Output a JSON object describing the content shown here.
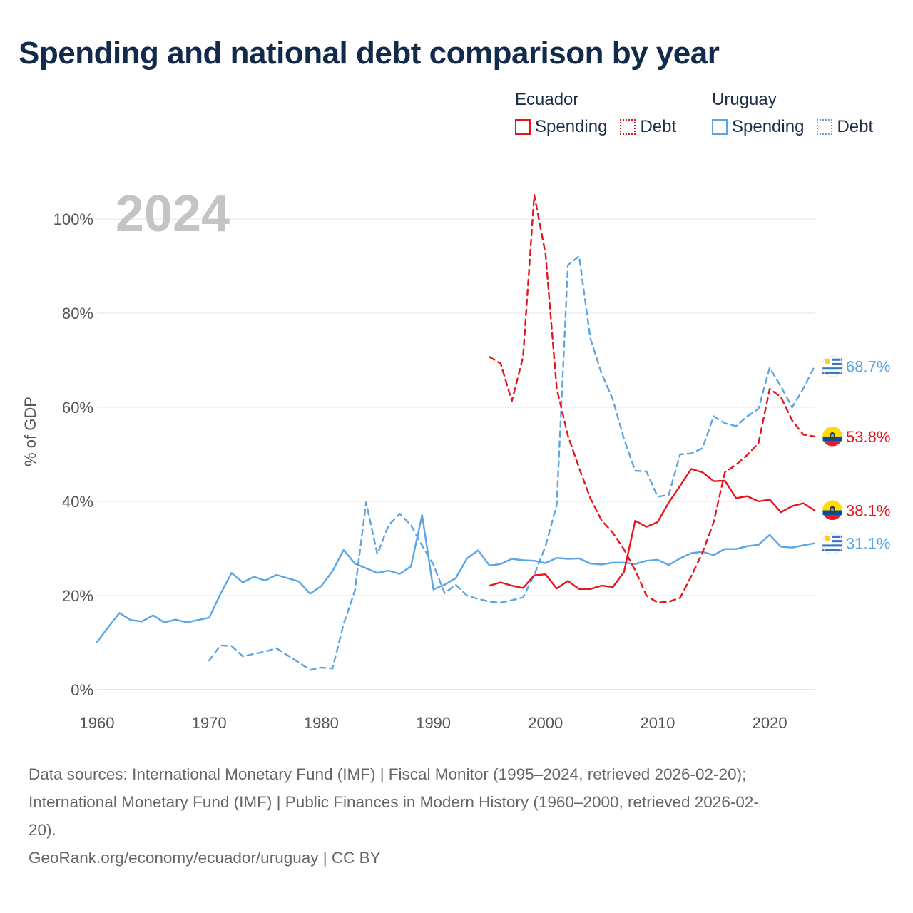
{
  "header": {
    "title": "Spending and national debt comparison by year"
  },
  "legend": {
    "groups": [
      {
        "country": "Ecuador",
        "color": "#e8141c",
        "items": [
          {
            "label": "Spending",
            "style": "solid"
          },
          {
            "label": "Debt",
            "style": "dashed"
          }
        ]
      },
      {
        "country": "Uruguay",
        "color": "#5aa5e6",
        "items": [
          {
            "label": "Spending",
            "style": "solid"
          },
          {
            "label": "Debt",
            "style": "dashed"
          }
        ]
      }
    ]
  },
  "chart_data": {
    "type": "line",
    "title": "Spending and national debt comparison by year",
    "year_label": "2024",
    "xlabel": "",
    "ylabel": "% of GDP",
    "xlim": [
      1960,
      2024
    ],
    "ylim": [
      0,
      100
    ],
    "x_ticks": [
      1960,
      1970,
      1980,
      1990,
      2000,
      2010,
      2020
    ],
    "y_ticks": [
      0,
      20,
      40,
      60,
      80,
      100
    ],
    "y_tick_labels": [
      "0%",
      "20%",
      "40%",
      "60%",
      "80%",
      "100%"
    ],
    "grid": true,
    "series": [
      {
        "name": "Uruguay Spending",
        "country": "Uruguay",
        "metric": "Spending",
        "color": "#5aa5e6",
        "style": "solid",
        "x": [
          1960,
          1961,
          1962,
          1963,
          1964,
          1965,
          1966,
          1967,
          1968,
          1969,
          1970,
          1971,
          1972,
          1973,
          1974,
          1975,
          1976,
          1977,
          1978,
          1979,
          1980,
          1981,
          1982,
          1983,
          1984,
          1985,
          1986,
          1987,
          1988,
          1989,
          1990,
          1991,
          1992,
          1993,
          1994,
          1995,
          1996,
          1997,
          1998,
          1999,
          2000,
          2001,
          2002,
          2003,
          2004,
          2005,
          2006,
          2007,
          2008,
          2009,
          2010,
          2011,
          2012,
          2013,
          2014,
          2015,
          2016,
          2017,
          2018,
          2019,
          2020,
          2021,
          2022,
          2023,
          2024
        ],
        "values": [
          10.1,
          13.3,
          16.3,
          14.8,
          14.5,
          15.8,
          14.3,
          14.9,
          14.3,
          14.8,
          15.3,
          20.3,
          24.8,
          22.8,
          24.0,
          23.2,
          24.4,
          23.7,
          23.0,
          20.4,
          22.0,
          25.2,
          29.7,
          26.8,
          25.8,
          24.8,
          25.3,
          24.6,
          26.2,
          37.1,
          21.3,
          22.3,
          23.7,
          27.9,
          29.6,
          26.4,
          26.7,
          27.8,
          27.5,
          27.4,
          26.9,
          28.0,
          27.8,
          27.9,
          26.8,
          26.6,
          27.0,
          27.0,
          26.7,
          27.4,
          27.6,
          26.5,
          27.9,
          29.0,
          29.3,
          28.6,
          29.9,
          29.9,
          30.5,
          30.8,
          32.9,
          30.4,
          30.2,
          30.7,
          31.1
        ],
        "end_label": "31.1%"
      },
      {
        "name": "Uruguay Debt",
        "country": "Uruguay",
        "metric": "Debt",
        "color": "#5aa5e6",
        "style": "dashed",
        "x": [
          1970,
          1971,
          1972,
          1973,
          1974,
          1975,
          1976,
          1977,
          1978,
          1979,
          1980,
          1981,
          1982,
          1983,
          1984,
          1985,
          1986,
          1987,
          1988,
          1989,
          1990,
          1991,
          1992,
          1993,
          1994,
          1995,
          1996,
          1997,
          1998,
          1999,
          2000,
          2001,
          2002,
          2003,
          2004,
          2005,
          2006,
          2007,
          2008,
          2009,
          2010,
          2011,
          2012,
          2013,
          2014,
          2015,
          2016,
          2017,
          2018,
          2019,
          2020,
          2021,
          2022,
          2023,
          2024
        ],
        "values": [
          6.2,
          9.4,
          9.3,
          7.1,
          7.6,
          8.1,
          8.8,
          7.3,
          5.8,
          4.2,
          4.7,
          4.5,
          14.0,
          21.0,
          39.8,
          28.8,
          34.9,
          37.4,
          35.0,
          30.6,
          26.6,
          20.5,
          22.3,
          20.0,
          19.3,
          18.7,
          18.5,
          19.0,
          19.6,
          24.4,
          30.5,
          39.3,
          90.2,
          92.1,
          74.7,
          67.2,
          61.7,
          53.3,
          46.5,
          46.4,
          41.0,
          41.4,
          50.0,
          50.2,
          51.3,
          58.1,
          56.6,
          56.0,
          58.1,
          59.7,
          68.4,
          64.4,
          60.0,
          64.0,
          68.7
        ],
        "end_label": "68.7%"
      },
      {
        "name": "Ecuador Spending",
        "country": "Ecuador",
        "metric": "Spending",
        "color": "#e8141c",
        "style": "solid",
        "x": [
          1995,
          1996,
          1997,
          1998,
          1999,
          2000,
          2001,
          2002,
          2003,
          2004,
          2005,
          2006,
          2007,
          2008,
          2009,
          2010,
          2011,
          2012,
          2013,
          2014,
          2015,
          2016,
          2017,
          2018,
          2019,
          2020,
          2021,
          2022,
          2023,
          2024
        ],
        "values": [
          22.1,
          22.8,
          22.1,
          21.6,
          24.3,
          24.5,
          21.5,
          23.1,
          21.4,
          21.4,
          22.1,
          21.8,
          25.0,
          35.9,
          34.6,
          35.6,
          39.8,
          43.3,
          46.9,
          46.2,
          44.3,
          44.4,
          40.7,
          41.1,
          40.0,
          40.4,
          37.7,
          39.0,
          39.6,
          38.1
        ],
        "end_label": "38.1%"
      },
      {
        "name": "Ecuador Debt",
        "country": "Ecuador",
        "metric": "Debt",
        "color": "#e8141c",
        "style": "dashed",
        "x": [
          1995,
          1996,
          1997,
          1998,
          1999,
          2000,
          2001,
          2002,
          2003,
          2004,
          2005,
          2006,
          2007,
          2008,
          2009,
          2010,
          2011,
          2012,
          2013,
          2014,
          2015,
          2016,
          2017,
          2018,
          2019,
          2020,
          2021,
          2022,
          2023,
          2024
        ],
        "values": [
          70.7,
          69.3,
          61.3,
          70.7,
          105.1,
          92.6,
          64.0,
          54.0,
          47.1,
          40.7,
          36.0,
          33.4,
          29.8,
          25.4,
          20.0,
          18.5,
          18.7,
          19.5,
          24.1,
          29.1,
          35.6,
          46.2,
          47.8,
          49.9,
          52.4,
          63.9,
          62.2,
          57.2,
          54.2,
          53.8
        ],
        "end_label": "53.8%"
      }
    ]
  },
  "footer": {
    "sources_line1": "Data sources: International Monetary Fund (IMF) | Fiscal Monitor (1995–2024, retrieved 2026-02-20);",
    "sources_line2": "International Monetary Fund (IMF) | Public Finances in Modern History (1960–2000, retrieved 2026-02-",
    "sources_line3": "20).",
    "attribution": "GeoRank.org/economy/ecuador/uruguay | CC BY"
  }
}
